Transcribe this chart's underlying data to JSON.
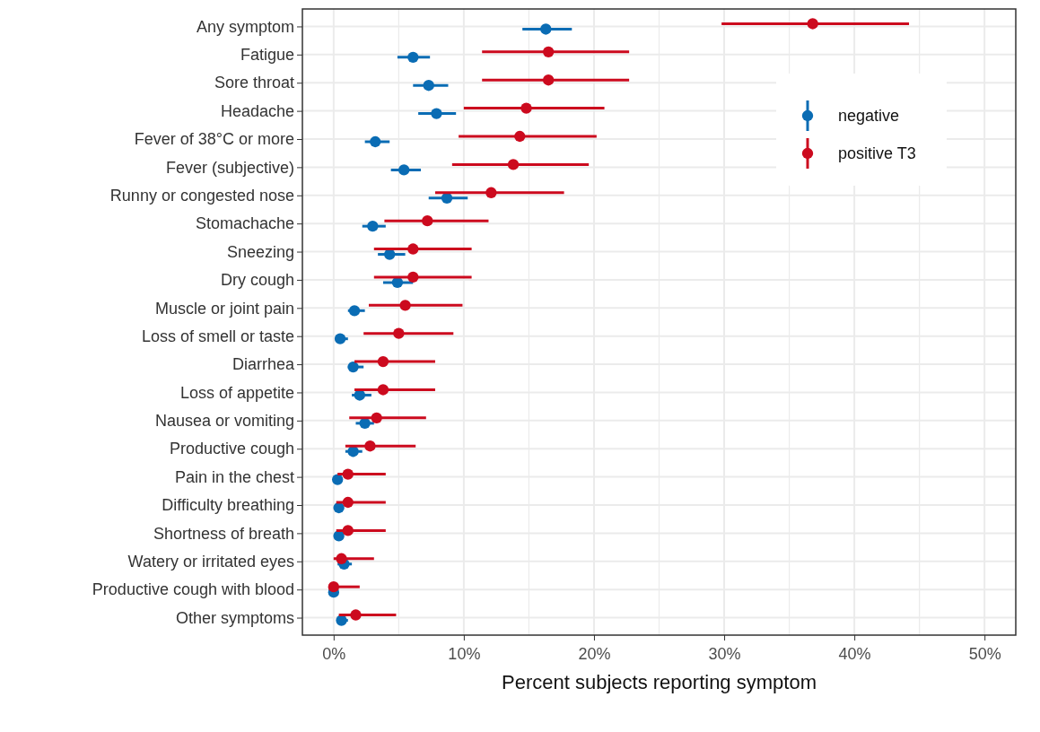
{
  "chart_data": {
    "type": "scatter",
    "orientation": "horizontal",
    "xlabel": "Percent subjects reporting symptom",
    "categories": [
      "Any symptom",
      "Fatigue",
      "Sore throat",
      "Headache",
      "Fever of 38°C or more",
      "Fever (subjective)",
      "Runny or congested nose",
      "Stomachache",
      "Sneezing",
      "Dry cough",
      "Muscle or joint pain",
      "Loss of smell or taste",
      "Diarrhea",
      "Loss of appetite",
      "Nausea or vomiting",
      "Productive cough",
      "Pain in the chest",
      "Difficulty breathing",
      "Shortness of breath",
      "Watery or irritated eyes",
      "Productive cough with blood",
      "Other symptoms"
    ],
    "series": [
      {
        "name": "negative",
        "color": "#0a6cb4",
        "values": [
          16.3,
          6.1,
          7.3,
          7.9,
          3.2,
          5.4,
          8.7,
          3.0,
          4.3,
          4.9,
          1.6,
          0.5,
          1.5,
          2.0,
          2.4,
          1.5,
          0.3,
          0.4,
          0.4,
          0.8,
          0.0,
          0.6
        ],
        "errors": [
          [
            14.5,
            18.3
          ],
          [
            4.9,
            7.4
          ],
          [
            6.1,
            8.8
          ],
          [
            6.5,
            9.4
          ],
          [
            2.4,
            4.3
          ],
          [
            4.4,
            6.7
          ],
          [
            7.3,
            10.3
          ],
          [
            2.2,
            4.0
          ],
          [
            3.4,
            5.5
          ],
          [
            3.8,
            6.1
          ],
          [
            1.1,
            2.4
          ],
          [
            0.2,
            1.1
          ],
          [
            1.1,
            2.3
          ],
          [
            1.4,
            2.9
          ],
          [
            1.7,
            3.1
          ],
          [
            0.9,
            2.2
          ],
          null,
          null,
          null,
          [
            0.3,
            1.4
          ],
          null,
          [
            0.3,
            1.1
          ]
        ]
      },
      {
        "name": "positive T3",
        "color": "#cc0a1e",
        "values": [
          36.8,
          16.5,
          16.5,
          14.8,
          14.3,
          13.8,
          12.1,
          7.2,
          6.1,
          6.1,
          5.5,
          5.0,
          3.8,
          3.8,
          3.3,
          2.8,
          1.1,
          1.1,
          1.1,
          0.6,
          0.0,
          1.7
        ],
        "errors": [
          [
            29.8,
            44.2
          ],
          [
            11.4,
            22.7
          ],
          [
            11.4,
            22.7
          ],
          [
            10.0,
            20.8
          ],
          [
            9.6,
            20.2
          ],
          [
            9.1,
            19.6
          ],
          [
            7.8,
            17.7
          ],
          [
            3.9,
            11.9
          ],
          [
            3.1,
            10.6
          ],
          [
            3.1,
            10.6
          ],
          [
            2.7,
            9.9
          ],
          [
            2.3,
            9.2
          ],
          [
            1.6,
            7.8
          ],
          [
            1.6,
            7.8
          ],
          [
            1.2,
            7.1
          ],
          [
            0.9,
            6.3
          ],
          [
            0.3,
            4.0
          ],
          [
            0.2,
            4.0
          ],
          [
            0.2,
            4.0
          ],
          [
            0.0,
            3.1
          ],
          [
            0.0,
            2.0
          ],
          [
            0.4,
            4.8
          ]
        ]
      }
    ],
    "xlim": [
      -2.4,
      52.4
    ],
    "xticks": [
      {
        "value": 0,
        "label": "0%"
      },
      {
        "value": 5,
        "label": null
      },
      {
        "value": 10,
        "label": "10%"
      },
      {
        "value": 15,
        "label": null
      },
      {
        "value": 20,
        "label": "20%"
      },
      {
        "value": 25,
        "label": null
      },
      {
        "value": 30,
        "label": "30%"
      },
      {
        "value": 35,
        "label": null
      },
      {
        "value": 40,
        "label": "40%"
      },
      {
        "value": 45,
        "label": null
      },
      {
        "value": 50,
        "label": "50%"
      }
    ],
    "grid": true,
    "legend": "top right",
    "marker": "circle"
  }
}
